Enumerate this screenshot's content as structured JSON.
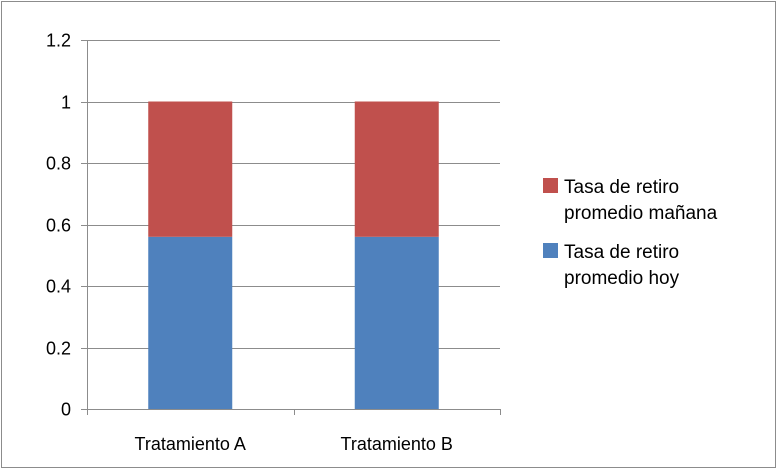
{
  "chart_data": {
    "type": "bar",
    "stacked": true,
    "categories": [
      "Tratamiento A",
      "Tratamiento B"
    ],
    "series": [
      {
        "name": "Tasa de retiro promedio hoy",
        "legend_lines": [
          "Tasa de retiro",
          "promedio hoy"
        ],
        "color": "#4f81bd",
        "values": [
          0.56,
          0.56
        ]
      },
      {
        "name": "Tasa de retiro promedio mañana",
        "legend_lines": [
          "Tasa de retiro",
          "promedio mañana"
        ],
        "color": "#c0504d",
        "values": [
          0.44,
          0.44
        ]
      }
    ],
    "yticks": [
      "0",
      "0.2",
      "0.4",
      "0.6",
      "0.8",
      "1",
      "1.2"
    ],
    "ylim": [
      0,
      1.2
    ],
    "grid": true,
    "legend_position": "right"
  }
}
